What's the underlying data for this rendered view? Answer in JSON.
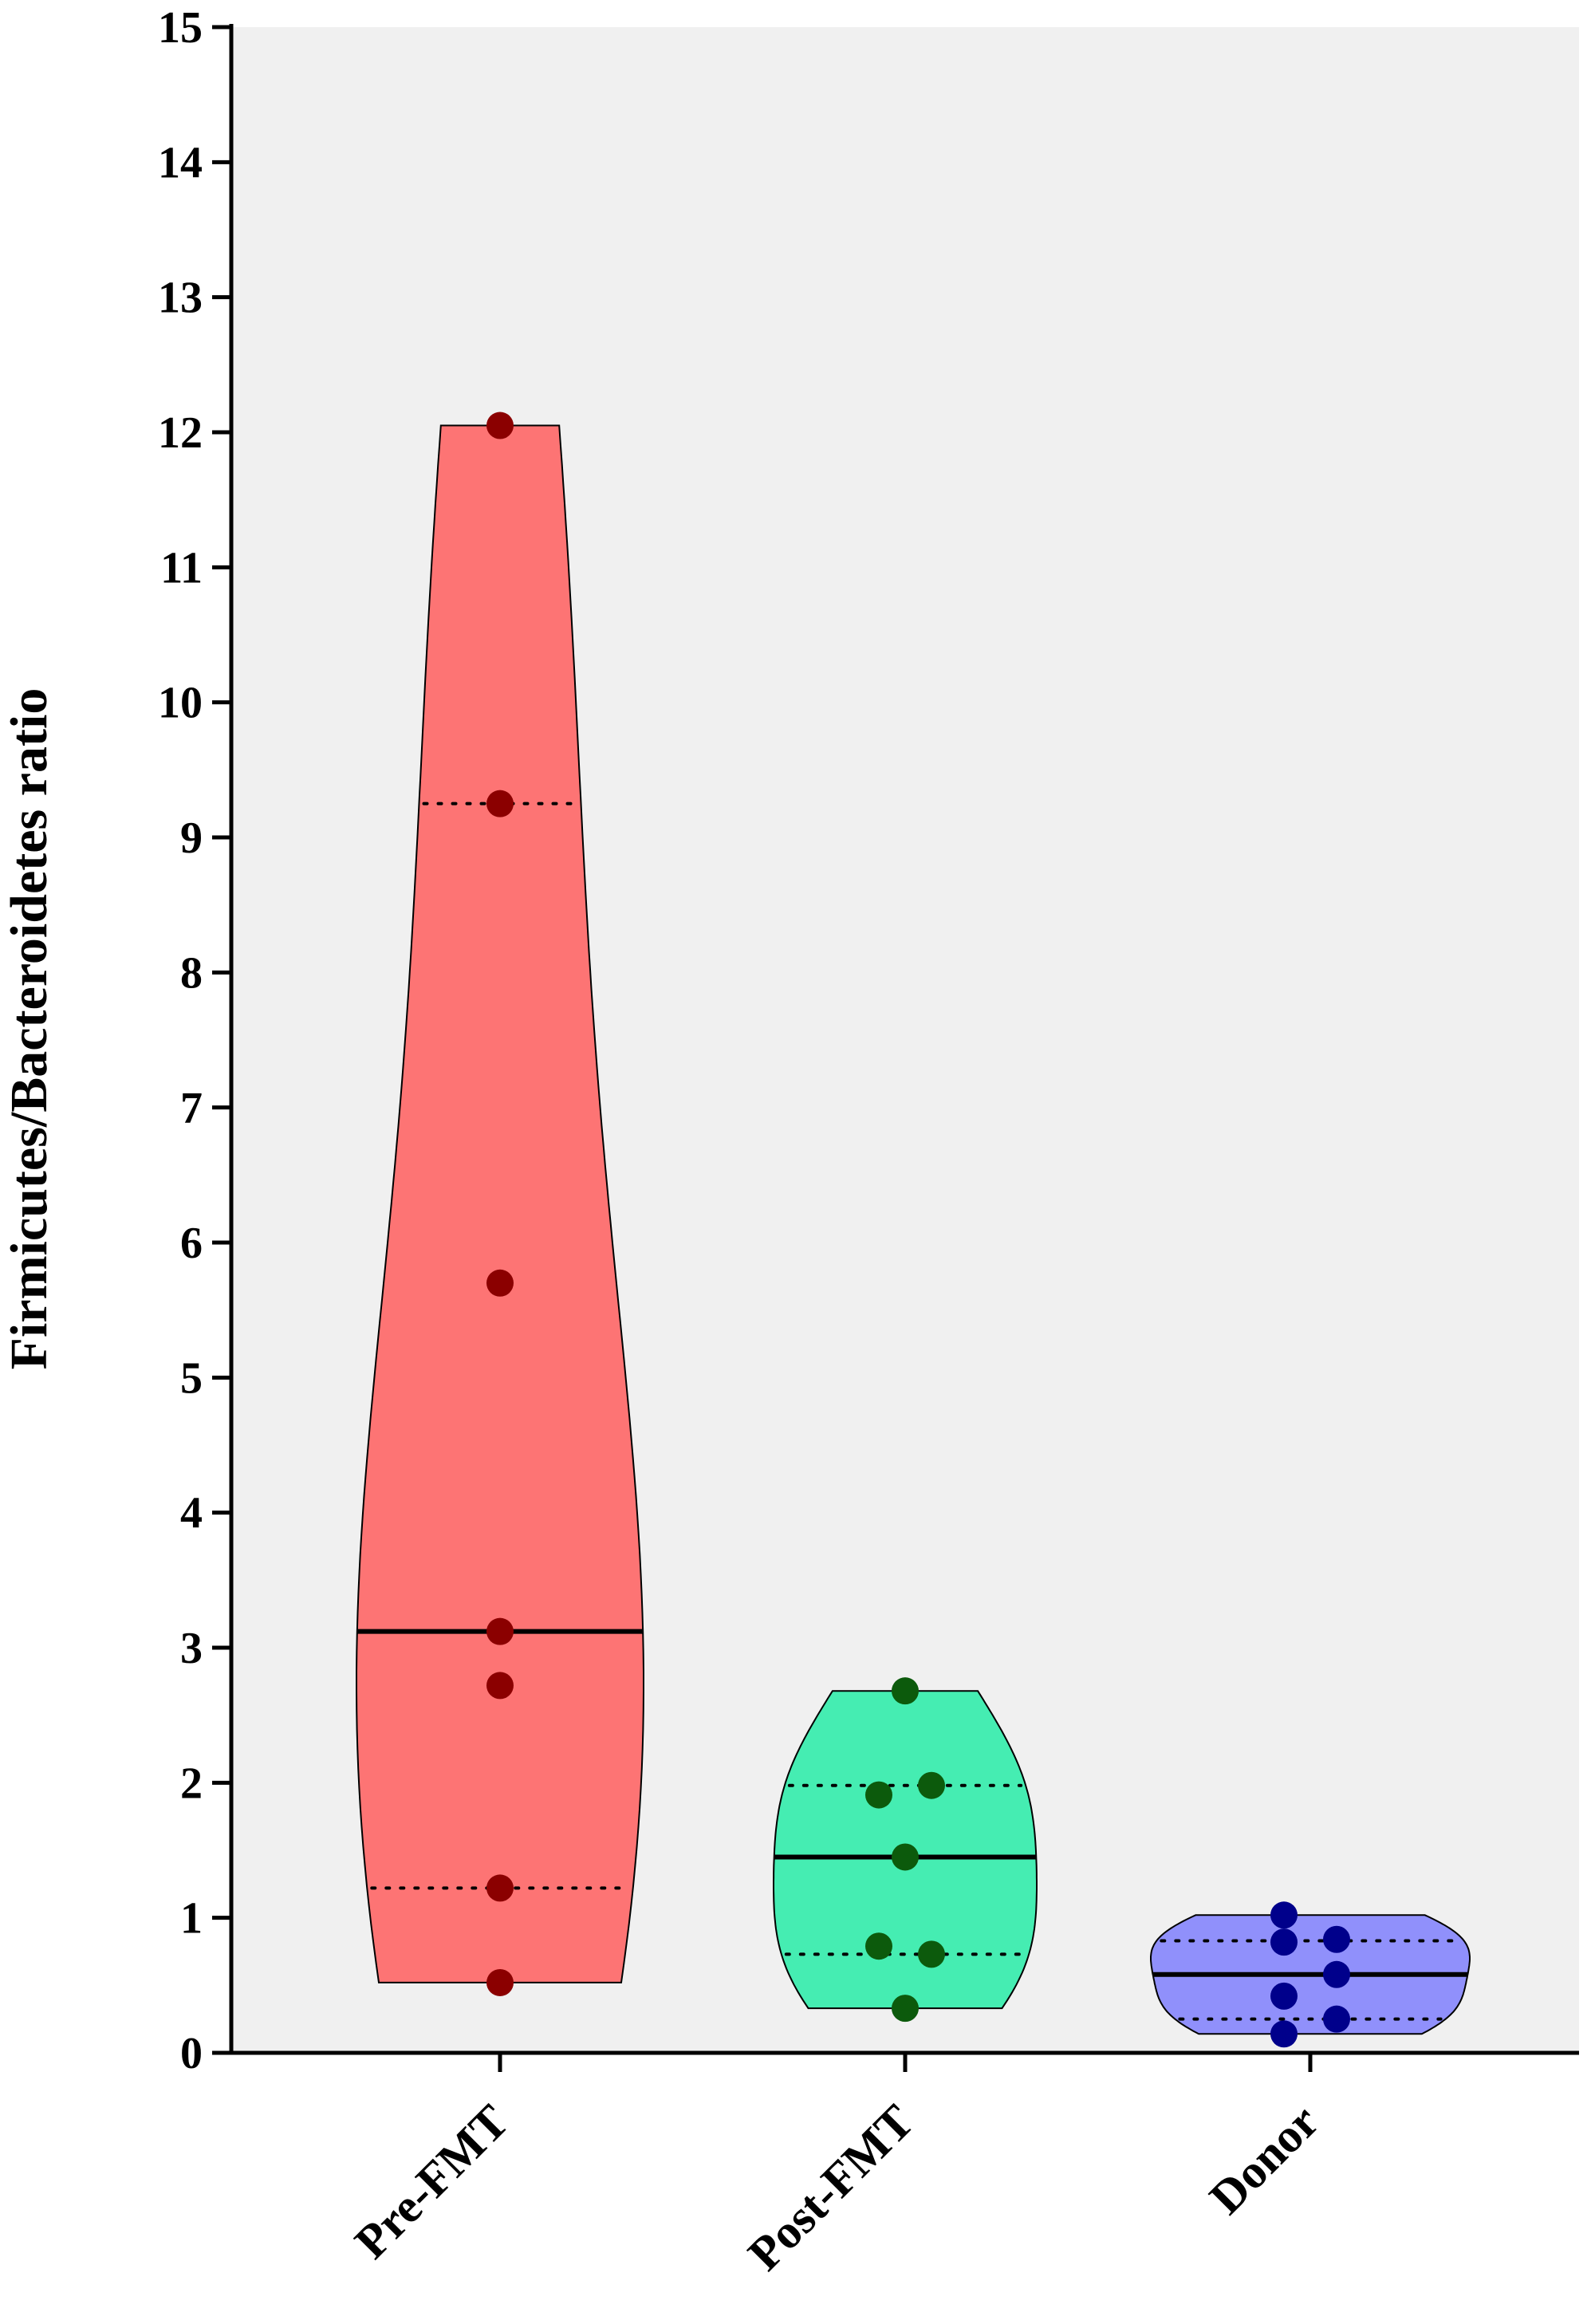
{
  "chart_data": {
    "type": "violin",
    "title": "",
    "xlabel": "",
    "ylabel": "Firmicutes/Bacteroidetes ratio",
    "ylim": [
      0,
      15
    ],
    "yticks": [
      0,
      1,
      2,
      3,
      4,
      5,
      6,
      7,
      8,
      9,
      10,
      11,
      12,
      13,
      14,
      15
    ],
    "categories": [
      "Pre-FMT",
      "Post-FMT",
      "Donor"
    ],
    "grid": false,
    "legend": "none",
    "series": [
      {
        "category": "Pre-FMT",
        "fill": "#fd7474",
        "point_color": "#8b0000",
        "points": [
          12.05,
          9.25,
          5.7,
          3.12,
          2.72,
          1.22,
          0.52
        ],
        "median": 3.12,
        "q1": 1.22,
        "q3": 9.25,
        "min": 0.52,
        "max": 12.05
      },
      {
        "category": "Post-FMT",
        "fill": "#45edb2",
        "point_color": "#0c5a0c",
        "points": [
          2.68,
          1.98,
          1.91,
          1.45,
          0.79,
          0.73,
          0.33
        ],
        "median": 1.45,
        "q1": 0.73,
        "q3": 1.98,
        "min": 0.33,
        "max": 2.68
      },
      {
        "category": "Donor",
        "fill": "#9090fb",
        "point_color": "#00008b",
        "points": [
          1.02,
          0.84,
          0.82,
          0.58,
          0.42,
          0.25,
          0.14
        ],
        "median": 0.58,
        "q1": 0.25,
        "q3": 0.83,
        "min": 0.14,
        "max": 1.02
      }
    ]
  }
}
